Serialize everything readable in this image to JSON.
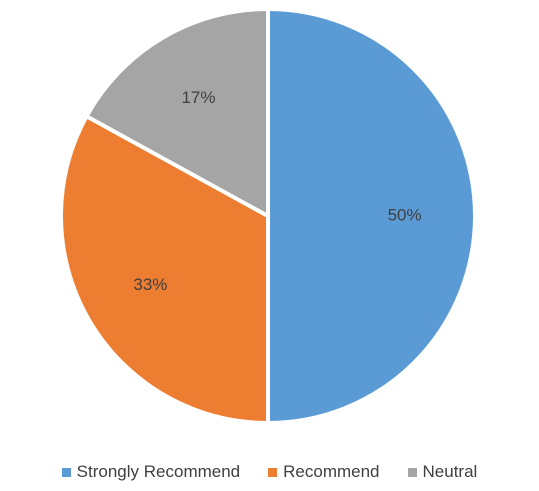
{
  "chart_data": {
    "type": "pie",
    "categories": [
      "Strongly Recommend",
      "Recommend",
      "Neutral"
    ],
    "values": [
      50,
      33,
      17
    ],
    "labels": [
      "50%",
      "33%",
      "17%"
    ],
    "colors": [
      "#5B9BD5",
      "#ED7D31",
      "#A5A5A5"
    ],
    "title": "",
    "legend_position": "bottom"
  }
}
